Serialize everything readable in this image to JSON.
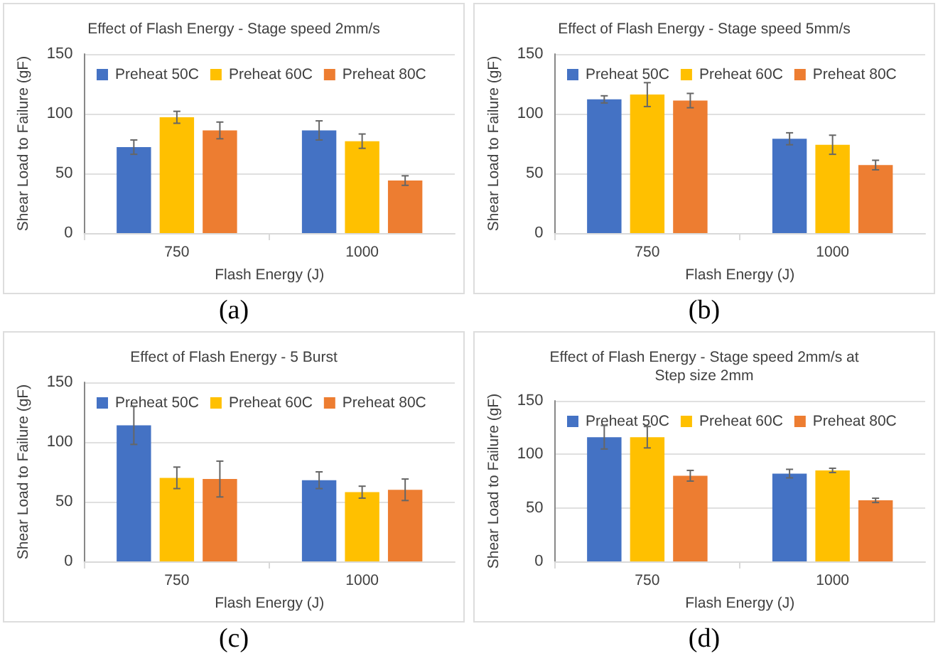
{
  "chart_data": [
    {
      "type": "bar",
      "title": "Effect of Flash Energy - Stage speed 2mm/s",
      "xlabel": "Flash Energy (J)",
      "ylabel": "Shear Load to Failure (gF)",
      "categories": [
        "750",
        "1000"
      ],
      "ylim": [
        0,
        150
      ],
      "yticks": [
        0,
        50,
        100,
        150
      ],
      "grid": "y",
      "legend": "top",
      "annotations": [
        "(a)"
      ],
      "series": [
        {
          "name": "Preheat 50C",
          "color": "#4472c4",
          "values": [
            72,
            86
          ],
          "errors": [
            6,
            8
          ]
        },
        {
          "name": "Preheat 60C",
          "color": "#ffc000",
          "values": [
            97,
            77
          ],
          "errors": [
            5,
            6
          ]
        },
        {
          "name": "Preheat 80C",
          "color": "#ed7d31",
          "values": [
            86,
            44
          ],
          "errors": [
            7,
            4
          ]
        }
      ]
    },
    {
      "type": "bar",
      "title": "Effect of Flash Energy - Stage speed 5mm/s",
      "xlabel": "Flash Energy (J)",
      "ylabel": "Shear Load to Failure (gF)",
      "categories": [
        "750",
        "1000"
      ],
      "ylim": [
        0,
        150
      ],
      "yticks": [
        0,
        50,
        100,
        150
      ],
      "grid": "y",
      "legend": "top",
      "annotations": [
        "(b)"
      ],
      "series": [
        {
          "name": "Preheat 50C",
          "color": "#4472c4",
          "values": [
            112,
            79
          ],
          "errors": [
            3,
            5
          ]
        },
        {
          "name": "Preheat 60C",
          "color": "#ffc000",
          "values": [
            116,
            74
          ],
          "errors": [
            10,
            8
          ]
        },
        {
          "name": "Preheat 80C",
          "color": "#ed7d31",
          "values": [
            111,
            57
          ],
          "errors": [
            6,
            4
          ]
        }
      ]
    },
    {
      "type": "bar",
      "title": "Effect of Flash Energy - 5 Burst",
      "xlabel": "Flash Energy (J)",
      "ylabel": "Shear Load to Failure (gF)",
      "categories": [
        "750",
        "1000"
      ],
      "ylim": [
        0,
        150
      ],
      "yticks": [
        0,
        50,
        100,
        150
      ],
      "grid": "y",
      "legend": "top",
      "annotations": [
        "(c)"
      ],
      "series": [
        {
          "name": "Preheat 50C",
          "color": "#4472c4",
          "values": [
            114,
            68
          ],
          "errors": [
            16,
            7
          ]
        },
        {
          "name": "Preheat 60C",
          "color": "#ffc000",
          "values": [
            70,
            58
          ],
          "errors": [
            9,
            5
          ]
        },
        {
          "name": "Preheat 80C",
          "color": "#ed7d31",
          "values": [
            69,
            60
          ],
          "errors": [
            15,
            9
          ]
        }
      ]
    },
    {
      "type": "bar",
      "title": "Effect of Flash Energy - Stage speed 2mm/s at\nStep size 2mm",
      "xlabel": "Flash Energy (J)",
      "ylabel": "Shear Load to Failure (gF)",
      "categories": [
        "750",
        "1000"
      ],
      "ylim": [
        0,
        150
      ],
      "yticks": [
        0,
        50,
        100,
        150
      ],
      "grid": "y",
      "legend": "top",
      "annotations": [
        "(d)"
      ],
      "series": [
        {
          "name": "Preheat 50C",
          "color": "#4472c4",
          "values": [
            116,
            82
          ],
          "errors": [
            11,
            4
          ]
        },
        {
          "name": "Preheat 60C",
          "color": "#ffc000",
          "values": [
            116,
            85
          ],
          "errors": [
            10,
            2
          ]
        },
        {
          "name": "Preheat 80C",
          "color": "#ed7d31",
          "values": [
            80,
            57
          ],
          "errors": [
            5,
            2
          ]
        }
      ]
    }
  ]
}
